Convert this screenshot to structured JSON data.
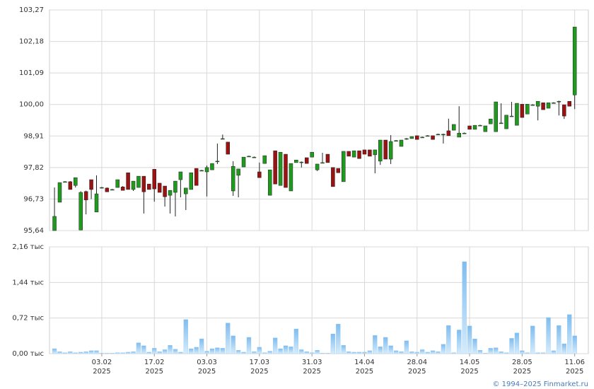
{
  "chart_data": [
    {
      "type": "candlestick",
      "up_color": "#1f9a1f",
      "down_color": "#9a1212",
      "open": [
        95.64,
        96.62,
        97.33,
        97.33,
        97.2,
        95.66,
        96.99,
        97.4,
        96.28,
        97.13,
        97.11,
        97.06,
        97.13,
        97.15,
        97.64,
        97.06,
        97.13,
        97.52,
        97.25,
        97.76,
        97.28,
        97.18,
        96.86,
        96.96,
        97.4,
        96.91,
        97.06,
        97.79,
        97.72,
        97.67,
        97.74,
        98.04,
        98.82,
        98.7,
        97.01,
        97.55,
        97.84,
        98.21,
        98.18,
        97.67,
        97.96,
        96.86,
        98.4,
        97.2,
        98.28,
        97.01,
        97.99,
        98.01,
        98.16,
        98.18,
        97.74,
        97.99,
        98.28,
        97.82,
        97.79,
        97.33,
        98.38,
        98.18,
        98.4,
        98.43,
        98.43,
        98.26,
        98.04,
        98.77,
        98.11,
        98.75,
        98.55,
        98.8,
        98.82,
        98.92,
        98.87,
        98.92,
        98.92,
        98.97,
        98.97,
        99.09,
        99.11,
        98.87,
        99.01,
        99.26,
        99.14,
        99.28,
        99.06,
        99.33,
        99.06,
        99.36,
        99.16,
        99.6,
        99.28,
        100.01,
        99.67,
        99.99,
        99.94,
        100.06,
        99.87,
        100.06,
        100.11,
        99.99,
        100.11,
        100.33
      ],
      "high": [
        97.13,
        97.3,
        97.35,
        97.35,
        97.47,
        97.0,
        97.02,
        97.4,
        97.55,
        97.15,
        97.13,
        97.08,
        97.4,
        97.18,
        97.64,
        97.35,
        97.52,
        97.52,
        97.25,
        97.76,
        97.28,
        97.18,
        97.03,
        97.35,
        97.67,
        97.11,
        97.64,
        97.79,
        97.74,
        97.89,
        97.96,
        98.65,
        98.96,
        98.7,
        98.04,
        97.77,
        98.18,
        98.23,
        98.2,
        97.99,
        98.23,
        97.74,
        98.4,
        98.35,
        98.28,
        97.96,
        98.08,
        98.03,
        98.16,
        98.35,
        97.94,
        98.33,
        98.28,
        97.82,
        97.79,
        98.38,
        98.38,
        98.4,
        98.4,
        98.43,
        98.43,
        98.43,
        98.77,
        98.77,
        98.94,
        98.77,
        98.77,
        98.84,
        98.89,
        98.92,
        98.89,
        98.94,
        98.92,
        98.99,
        98.99,
        99.51,
        99.31,
        99.94,
        99.03,
        99.26,
        99.28,
        99.3,
        99.26,
        99.5,
        100.09,
        100.04,
        99.63,
        100.09,
        100.04,
        100.01,
        100.01,
        100.01,
        100.11,
        100.06,
        100.06,
        100.08,
        100.13,
        99.99,
        100.11,
        102.68
      ],
      "low": [
        95.64,
        96.62,
        97.31,
        97.06,
        97.13,
        95.66,
        96.2,
        96.73,
        96.28,
        97.1,
        96.98,
        97.04,
        97.13,
        97.03,
        97.06,
        97.01,
        97.13,
        96.23,
        97.06,
        96.64,
        96.96,
        96.47,
        96.23,
        96.13,
        96.79,
        96.35,
        97.06,
        97.2,
        97.7,
        96.82,
        97.74,
        97.94,
        98.8,
        98.28,
        96.84,
        96.79,
        97.84,
        98.19,
        98.16,
        97.47,
        97.96,
        96.86,
        97.25,
        97.2,
        97.13,
        97.01,
        97.99,
        97.82,
        97.96,
        98.18,
        97.7,
        97.97,
        97.99,
        97.16,
        97.64,
        97.33,
        98.21,
        98.18,
        98.13,
        98.28,
        98.21,
        97.62,
        97.91,
        98.11,
        97.94,
        98.73,
        98.55,
        98.78,
        98.82,
        98.79,
        98.85,
        98.9,
        98.79,
        98.95,
        98.65,
        98.92,
        99.11,
        98.87,
        98.99,
        99.14,
        99.14,
        99.26,
        99.06,
        99.33,
        99.06,
        99.34,
        99.16,
        99.58,
        99.28,
        99.55,
        99.67,
        99.97,
        99.45,
        99.82,
        99.87,
        100.04,
        99.62,
        99.5,
        99.94,
        99.84
      ],
      "close": [
        96.13,
        97.3,
        97.33,
        97.06,
        97.47,
        96.96,
        96.7,
        97.06,
        96.91,
        97.13,
        96.98,
        97.06,
        97.4,
        97.03,
        97.06,
        97.35,
        97.52,
        96.98,
        97.06,
        97.08,
        96.96,
        96.81,
        97.03,
        97.35,
        97.67,
        97.11,
        97.64,
        97.2,
        97.72,
        97.82,
        97.96,
        98.04,
        98.82,
        98.28,
        97.86,
        97.77,
        98.18,
        98.21,
        98.18,
        97.47,
        98.23,
        97.74,
        97.25,
        98.35,
        97.13,
        97.96,
        98.08,
        98.01,
        97.96,
        98.35,
        97.94,
        97.99,
        97.99,
        97.16,
        97.64,
        98.38,
        98.21,
        98.4,
        98.13,
        98.28,
        98.21,
        98.43,
        98.77,
        98.11,
        98.72,
        98.75,
        98.77,
        98.82,
        98.89,
        98.79,
        98.87,
        98.92,
        98.79,
        98.97,
        98.97,
        98.92,
        99.31,
        99.01,
        99.01,
        99.14,
        99.28,
        99.28,
        99.26,
        99.5,
        100.09,
        99.36,
        99.63,
        99.6,
        100.04,
        99.55,
        100.01,
        99.99,
        100.11,
        99.82,
        100.06,
        100.06,
        100.11,
        99.6,
        99.94,
        102.68
      ],
      "xlim": [
        -0.95,
        101.6
      ],
      "xticks": [
        9,
        19,
        29,
        39,
        49,
        59,
        69,
        79,
        89,
        99
      ],
      "ylim": [
        95.64,
        103.27
      ],
      "yticks": [
        {
          "value": 95.64,
          "label": "95,64"
        },
        {
          "value": 96.73,
          "label": "96,73"
        },
        {
          "value": 97.82,
          "label": "97,82"
        },
        {
          "value": 98.91,
          "label": "98,91"
        },
        {
          "value": 100.0,
          "label": "100,00"
        },
        {
          "value": 101.09,
          "label": "101,09"
        },
        {
          "value": 102.18,
          "label": "102,18"
        },
        {
          "value": 103.27,
          "label": "103,27"
        }
      ],
      "grid": true
    },
    {
      "type": "bar",
      "color": "#8fc9f2",
      "values": [
        0.1,
        0.04,
        0.02,
        0.04,
        0.02,
        0.03,
        0.04,
        0.06,
        0.06,
        0.01,
        0.01,
        0.01,
        0.02,
        0.02,
        0.03,
        0.04,
        0.22,
        0.16,
        0.03,
        0.11,
        0.04,
        0.08,
        0.17,
        0.09,
        0.03,
        0.69,
        0.1,
        0.13,
        0.3,
        0.05,
        0.1,
        0.12,
        0.11,
        0.62,
        0.36,
        0.07,
        0.03,
        0.33,
        0.04,
        0.13,
        0.02,
        0.05,
        0.32,
        0.1,
        0.16,
        0.14,
        0.5,
        0.08,
        0.04,
        0.02,
        0.07,
        0.01,
        0.01,
        0.4,
        0.6,
        0.17,
        0.04,
        0.03,
        0.03,
        0.03,
        0.06,
        0.37,
        0.14,
        0.33,
        0.16,
        0.06,
        0.04,
        0.26,
        0.04,
        0.03,
        0.08,
        0.03,
        0.06,
        0.04,
        0.19,
        0.57,
        0.02,
        0.48,
        1.86,
        0.56,
        0.3,
        0.07,
        0.01,
        0.11,
        0.12,
        0.04,
        0.02,
        0.31,
        0.42,
        0.06,
        0.02,
        0.56,
        0.02,
        0.02,
        0.73,
        0.06,
        0.57,
        0.2,
        0.79,
        0.36
      ],
      "xlim": [
        -0.95,
        101.6
      ],
      "xticks": [
        {
          "value": 9,
          "label": "03.02"
        },
        {
          "value": 19,
          "label": "17.02"
        },
        {
          "value": 29,
          "label": "03.03"
        },
        {
          "value": 39,
          "label": "17.03"
        },
        {
          "value": 49,
          "label": "31.03"
        },
        {
          "value": 59,
          "label": "14.04"
        },
        {
          "value": 69,
          "label": "28.04"
        },
        {
          "value": 79,
          "label": "14.05"
        },
        {
          "value": 89,
          "label": "28.05"
        },
        {
          "value": 99,
          "label": "11.06"
        }
      ],
      "xtick_year": "2025",
      "ylim": [
        0,
        2.16
      ],
      "yticks": [
        {
          "value": 0,
          "label": "0,00 тыс"
        },
        {
          "value": 0.72,
          "label": "0,72 тыс"
        },
        {
          "value": 1.44,
          "label": "1,44 тыс"
        },
        {
          "value": 2.16,
          "label": "2,16 тыс"
        }
      ],
      "grid": true,
      "footer": "© 1994–2025 Finmarket.ru"
    }
  ]
}
